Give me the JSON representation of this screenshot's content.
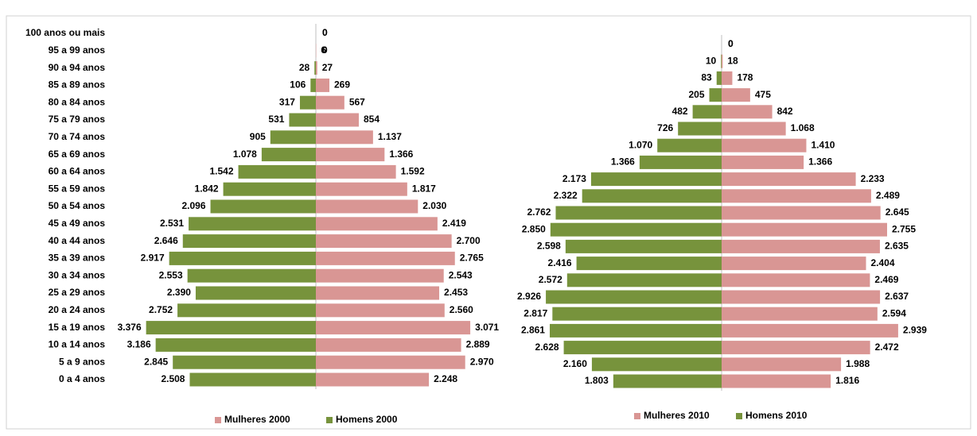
{
  "chart_data": [
    {
      "type": "pyramid",
      "categories": [
        "100 anos ou mais",
        "95 a 99 anos",
        "90 a 94 anos",
        "85 a 89 anos",
        "80 a 84 anos",
        "75 a 79 anos",
        "70 a 74 anos",
        "65 a 69 anos",
        "60 a 64 anos",
        "55 a 59 anos",
        "50 a 54 anos",
        "45 a 49 anos",
        "40 a 44 anos",
        "35 a 39 anos",
        "30 a 34 anos",
        "25 a 29 anos",
        "20 a 24 anos",
        "15 a 19 anos",
        "10 a 14 anos",
        "5 a 9 anos",
        "0 a 4 anos"
      ],
      "series": [
        {
          "name": "Mulheres 2000",
          "color": "#d99694",
          "side": "right",
          "values": [
            0,
            6,
            27,
            269,
            567,
            854,
            1137,
            1366,
            1592,
            1817,
            2030,
            2419,
            2700,
            2765,
            2543,
            2453,
            2560,
            3071,
            2889,
            2970,
            2248
          ],
          "value_labels": [
            "0",
            "6",
            "27",
            "269",
            "567",
            "854",
            "1.137",
            "1.366",
            "1.592",
            "1.817",
            "2.030",
            "2.419",
            "2.700",
            "2.765",
            "2.543",
            "2.453",
            "2.560",
            "3.071",
            "2.889",
            "2.970",
            "2.248"
          ]
        },
        {
          "name": "Homens 2000",
          "color": "#77933c",
          "side": "left",
          "values": [
            0,
            0,
            28,
            106,
            317,
            531,
            905,
            1078,
            1542,
            1842,
            2096,
            2531,
            2646,
            2917,
            2553,
            2390,
            2752,
            3376,
            3186,
            2845,
            2508
          ],
          "value_labels": [
            "0",
            "0",
            "28",
            "106",
            "317",
            "531",
            "905",
            "1.078",
            "1.542",
            "1.842",
            "2.096",
            "2.531",
            "2.646",
            "2.917",
            "2.553",
            "2.390",
            "2.752",
            "3.376",
            "3.186",
            "2.845",
            "2.508"
          ]
        }
      ]
    },
    {
      "type": "pyramid",
      "categories": [
        null,
        null,
        null,
        null,
        null,
        null,
        null,
        null,
        null,
        null,
        null,
        null,
        null,
        null,
        null,
        null,
        null,
        null,
        null,
        null,
        null
      ],
      "series": [
        {
          "name": "Mulheres 2010",
          "color": "#d99694",
          "side": "right",
          "values": [
            0,
            18,
            178,
            475,
            842,
            1068,
            1410,
            1366,
            2233,
            2489,
            2645,
            2755,
            2635,
            2404,
            2469,
            2637,
            2594,
            2939,
            2472,
            1988,
            1816
          ],
          "value_labels": [
            "0",
            "18",
            "178",
            "475",
            "842",
            "1.068",
            "1.410",
            "1.366",
            "2.233",
            "2.489",
            "2.645",
            "2.755",
            "2.635",
            "2.404",
            "2.469",
            "2.637",
            "2.594",
            "2.939",
            "2.472",
            "1.988",
            "1.816"
          ]
        },
        {
          "name": "Homens 2010",
          "color": "#77933c",
          "side": "left",
          "values": [
            0,
            10,
            83,
            205,
            482,
            726,
            1070,
            1366,
            2173,
            2322,
            2762,
            2850,
            2598,
            2416,
            2572,
            2926,
            2817,
            2861,
            2628,
            2160,
            1803
          ],
          "value_labels": [
            "0",
            "10",
            "83",
            "205",
            "482",
            "726",
            "1.070",
            "1.366",
            "2.173",
            "2.322",
            "2.762",
            "2.850",
            "2.598",
            "2.416",
            "2.572",
            "2.926",
            "2.817",
            "2.861",
            "2.628",
            "2.160",
            "1.803"
          ]
        }
      ]
    }
  ]
}
